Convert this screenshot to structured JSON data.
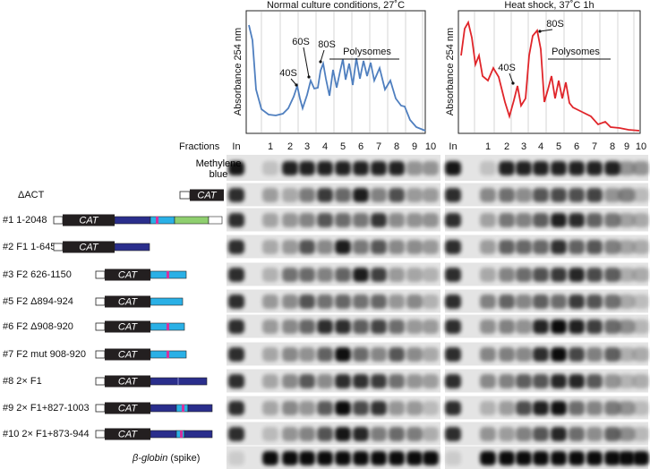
{
  "profiles": [
    {
      "title": "Normal culture conditions, 27˚C",
      "y_label": "Absorbance 254 nm",
      "peak_labels": [
        "40S",
        "60S",
        "80S"
      ],
      "polysomes_label": "Polysomes"
    },
    {
      "title": "Heat shock, 37˚C 1h",
      "y_label": "Absorbance 254 nm",
      "peak_labels": [
        "40S",
        "80S"
      ],
      "polysomes_label": "Polysomes"
    }
  ],
  "fractions_label": "Fractions",
  "blots": [
    {
      "input_label": "In",
      "fractions": [
        1,
        2,
        3,
        4,
        5,
        6,
        7,
        8,
        9,
        10
      ]
    },
    {
      "input_label": "In",
      "fractions": [
        1,
        2,
        3,
        4,
        5,
        6,
        7,
        8,
        9,
        10
      ]
    }
  ],
  "stain_label": "Methylene blue",
  "rows": [
    {
      "label": "ΔACT",
      "marker": "CAT"
    },
    {
      "label": "#1 1-2048",
      "marker": "CAT"
    },
    {
      "label": "#2 F1 1-645",
      "marker": "CAT"
    },
    {
      "label": "#3  F2 626-1150",
      "marker": "CAT"
    },
    {
      "label": "#5 F2 Δ894-924",
      "marker": "CAT"
    },
    {
      "label": "#6 F2 Δ908-920",
      "marker": "CAT"
    },
    {
      "label": "#7 F2 mut 908-920",
      "marker": "CAT"
    },
    {
      "label": "#8 2× F1",
      "marker": "CAT"
    },
    {
      "label": "#9 2× F1+827-1003",
      "marker": "CAT"
    },
    {
      "label": "#10 2× F1+873-944",
      "marker": "CAT"
    }
  ],
  "spike": {
    "gene": "β-globin",
    "note": "(spike)"
  }
}
